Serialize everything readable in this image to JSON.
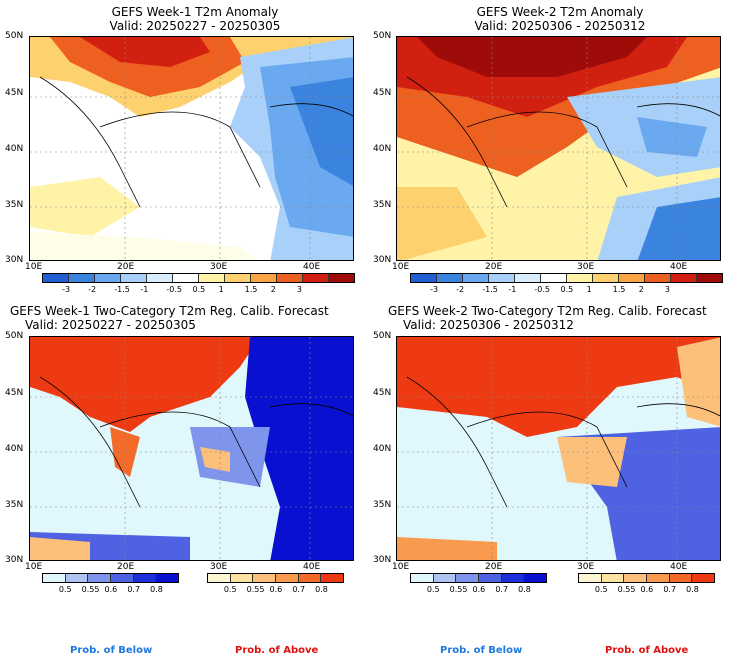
{
  "panels": [
    {
      "title": "GEFS Week-1 T2m Anomaly",
      "valid": "Valid: 20250227 - 20250305"
    },
    {
      "title": "GEFS Week-2 T2m Anomaly",
      "valid": "Valid: 20250306 - 20250312"
    },
    {
      "title": "GEFS Week-1 Two-Category T2m Reg. Calib. Forecast",
      "valid": "Valid: 20250227 - 20250305"
    },
    {
      "title": "GEFS Week-2 Two-Category T2m Reg. Calib. Forecast",
      "valid": "Valid: 20250306 - 20250312"
    }
  ],
  "axes": {
    "lat": [
      "50N",
      "45N",
      "40N",
      "35N",
      "30N"
    ],
    "lon": [
      "10E",
      "20E",
      "30E",
      "40E"
    ]
  },
  "anomaly_scale": {
    "labels": [
      "-3",
      "-2",
      "-1.5",
      "-1",
      "-0.5",
      "0.5",
      "1",
      "1.5",
      "2",
      "3"
    ],
    "colors": [
      "#1f5fcf",
      "#3a84e0",
      "#6aa8f0",
      "#a8d0f8",
      "#d8eefc",
      "#ffffff",
      "#fff3a8",
      "#fdd26e",
      "#f9a546",
      "#ee6020",
      "#d22010",
      "#9e0b08"
    ]
  },
  "prob_below": {
    "labels": [
      "0.5",
      "0.55",
      "0.6",
      "0.7",
      "0.8"
    ],
    "colors": [
      "#e0f7fb",
      "#b0c4f4",
      "#7f95ec",
      "#4f63e2",
      "#1f30d8",
      "#0a10d0"
    ],
    "caption": "Prob. of Below",
    "caption_color": "#1e78e0"
  },
  "prob_above": {
    "labels": [
      "0.5",
      "0.55",
      "0.6",
      "0.7",
      "0.8"
    ],
    "colors": [
      "#fdf6d2",
      "#fde3a2",
      "#fcc07a",
      "#f99a4e",
      "#f46a28",
      "#ee3a12"
    ],
    "caption": "Prob. of Above",
    "caption_color": "#e01010"
  }
}
